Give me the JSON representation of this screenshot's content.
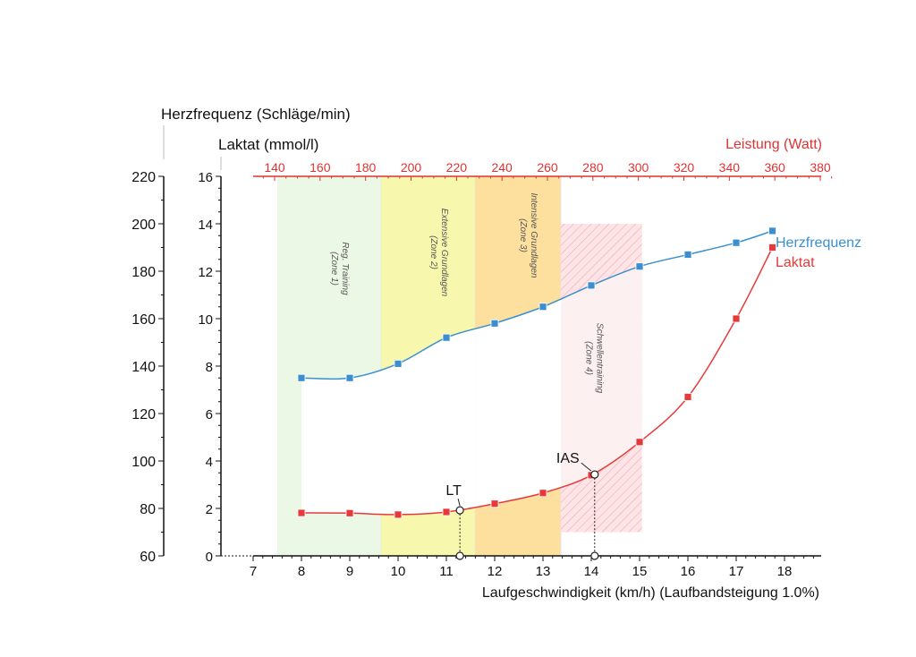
{
  "chart_data": {
    "type": "line",
    "title": "",
    "xlabel": "Laufgeschwindigkeit (km/h) (Laufbandsteigung 1.0%)",
    "x_ticks": [
      7,
      8,
      9,
      10,
      11,
      12,
      13,
      14,
      15,
      16,
      17,
      18
    ],
    "xlim": [
      6.3,
      18.7
    ],
    "y_hr_label": "Herzfrequenz (Schläge/min)",
    "y_hr_ticks": [
      60,
      80,
      100,
      120,
      140,
      160,
      180,
      200,
      220
    ],
    "y_hr_lim": [
      60,
      220
    ],
    "y_lac_label": "Laktat (mmol/l)",
    "y_lac_ticks": [
      0,
      2,
      4,
      6,
      8,
      10,
      12,
      14,
      16
    ],
    "y_lac_lim": [
      0,
      16
    ],
    "x_top_label": "Leistung (Watt)",
    "x_top_ticks": [
      140,
      160,
      180,
      200,
      220,
      240,
      260,
      280,
      300,
      320,
      340,
      360,
      380
    ],
    "grid": false,
    "series": [
      {
        "name": "Herzfrequenz",
        "axis": "hr",
        "color": "#3b8fd0",
        "x": [
          8,
          9,
          10,
          11,
          12,
          13,
          14,
          15,
          16,
          17,
          17.75
        ],
        "values": [
          135,
          135,
          141,
          152,
          158,
          165,
          174,
          182,
          187,
          192,
          197
        ]
      },
      {
        "name": "Laktat",
        "axis": "lac",
        "color": "#e8393a",
        "x": [
          8,
          9,
          10,
          11,
          12,
          13,
          14,
          15,
          16,
          17,
          17.75
        ],
        "values": [
          1.81,
          1.8,
          1.74,
          1.85,
          2.2,
          2.65,
          3.4,
          4.8,
          6.7,
          10.0,
          13.0
        ]
      }
    ],
    "markers": [
      {
        "label": "LT",
        "x": 11.28,
        "lactate": 1.92
      },
      {
        "label": "IAS",
        "x": 14.07,
        "lactate": 3.43
      }
    ],
    "zones": [
      {
        "label": "Reg. Training",
        "sub": "(Zone 1)",
        "x0": 7.5,
        "x1": 9.65,
        "y0": 0,
        "y1": 16,
        "color": "#ecf8e6",
        "between": "#ffffff",
        "hatched": false
      },
      {
        "label": "Extensive Grundlagen",
        "sub": "(Zone 2)",
        "x0": 9.65,
        "x1": 11.6,
        "y0": 0,
        "y1": 16,
        "color": "#f7f7ad",
        "between": "#ffffff",
        "hatched": false
      },
      {
        "label": "Intensive Grundlagen",
        "sub": "(Zone 3)",
        "x0": 11.6,
        "x1": 13.37,
        "y0": 0,
        "y1": 16,
        "color": "#fddf9e",
        "between": "#ffffff",
        "hatched": false
      },
      {
        "label": "Schwellentraining",
        "sub": "(Zone 4)",
        "x0": 13.37,
        "x1": 15.05,
        "y0": 1.0,
        "y1": 14,
        "color": "#fde4e6",
        "between": "#fdf0f1",
        "hatched": true
      }
    ]
  }
}
